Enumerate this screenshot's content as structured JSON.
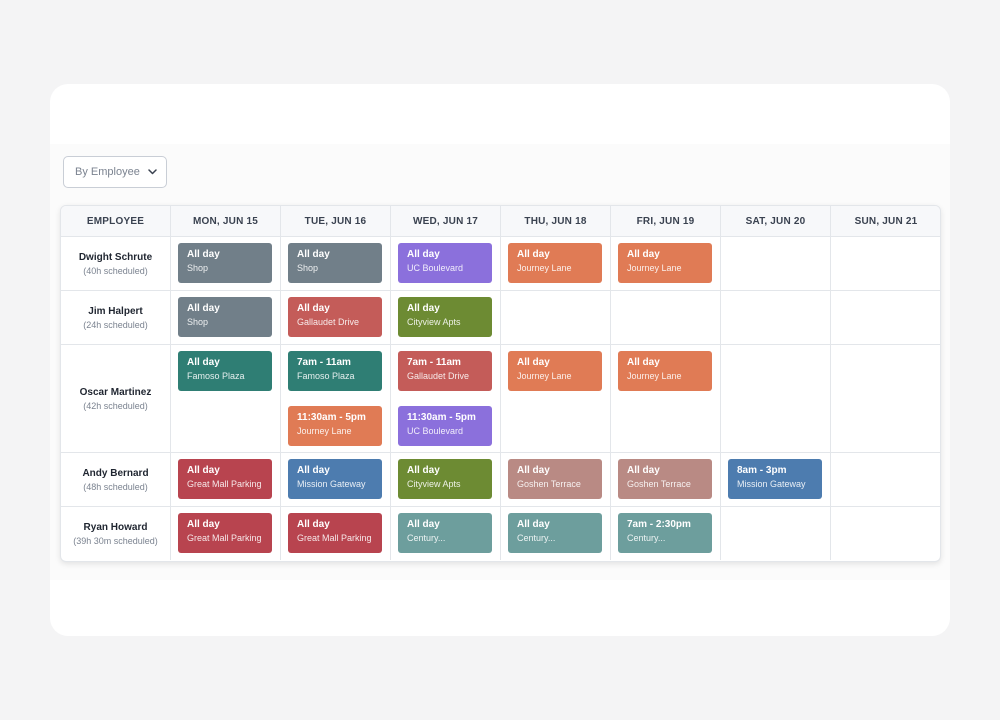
{
  "toolbar": {
    "view_select": "By Employee"
  },
  "table": {
    "headers": [
      "EMPLOYEE",
      "MON, JUN 15",
      "TUE, JUN 16",
      "WED, JUN 17",
      "THU, JUN 18",
      "FRI, JUN 19",
      "SAT, JUN 20",
      "SUN, JUN 21"
    ],
    "rows": [
      {
        "name": "Dwight Schrute",
        "hours": "(40h scheduled)",
        "days": [
          [
            {
              "time": "All day",
              "location": "Shop",
              "color": "#717f89"
            }
          ],
          [
            {
              "time": "All day",
              "location": "Shop",
              "color": "#717f89"
            }
          ],
          [
            {
              "time": "All day",
              "location": "UC Boulevard",
              "color": "#8b70dc"
            }
          ],
          [
            {
              "time": "All day",
              "location": "Journey Lane",
              "color": "#e07b55"
            }
          ],
          [
            {
              "time": "All day",
              "location": "Journey Lane",
              "color": "#e07b55"
            }
          ],
          [],
          []
        ]
      },
      {
        "name": "Jim Halpert",
        "hours": "(24h scheduled)",
        "days": [
          [
            {
              "time": "All day",
              "location": "Shop",
              "color": "#717f89"
            }
          ],
          [
            {
              "time": "All day",
              "location": "Gallaudet Drive",
              "color": "#c45c59"
            }
          ],
          [
            {
              "time": "All day",
              "location": "Cityview Apts",
              "color": "#6d8b33"
            }
          ],
          [],
          [],
          [],
          []
        ]
      },
      {
        "name": "Oscar Martinez",
        "hours": "(42h scheduled)",
        "days": [
          [
            {
              "time": "All day",
              "location": "Famoso Plaza",
              "color": "#2f7e74"
            }
          ],
          [
            {
              "time": "7am - 11am",
              "location": "Famoso Plaza",
              "color": "#2f7e74"
            },
            {
              "time": "11:30am - 5pm",
              "location": "Journey Lane",
              "color": "#e07b55"
            }
          ],
          [
            {
              "time": "7am - 11am",
              "location": "Gallaudet Drive",
              "color": "#c45c59"
            },
            {
              "time": "11:30am - 5pm",
              "location": "UC Boulevard",
              "color": "#8b70dc"
            }
          ],
          [
            {
              "time": "All day",
              "location": "Journey Lane",
              "color": "#e07b55"
            }
          ],
          [
            {
              "time": "All day",
              "location": "Journey Lane",
              "color": "#e07b55"
            }
          ],
          [],
          []
        ]
      },
      {
        "name": "Andy Bernard",
        "hours": "(48h scheduled)",
        "days": [
          [
            {
              "time": "All day",
              "location": "Great Mall Parking",
              "color": "#b8444f"
            }
          ],
          [
            {
              "time": "All day",
              "location": "Mission Gateway",
              "color": "#4d7caf"
            }
          ],
          [
            {
              "time": "All day",
              "location": "Cityview Apts",
              "color": "#6d8b33"
            }
          ],
          [
            {
              "time": "All day",
              "location": "Goshen Terrace",
              "color": "#b98a84"
            }
          ],
          [
            {
              "time": "All day",
              "location": "Goshen Terrace",
              "color": "#b98a84"
            }
          ],
          [
            {
              "time": "8am - 3pm",
              "location": "Mission Gateway",
              "color": "#4d7caf"
            }
          ],
          []
        ]
      },
      {
        "name": "Ryan Howard",
        "hours": "(39h 30m scheduled)",
        "days": [
          [
            {
              "time": "All day",
              "location": "Great Mall Parking",
              "color": "#b8444f"
            }
          ],
          [
            {
              "time": "All day",
              "location": "Great Mall Parking",
              "color": "#b8444f"
            }
          ],
          [
            {
              "time": "All day",
              "location": "Century...",
              "color": "#6d9e9d"
            }
          ],
          [
            {
              "time": "All day",
              "location": "Century...",
              "color": "#6d9e9d"
            }
          ],
          [
            {
              "time": "7am - 2:30pm",
              "location": "Century...",
              "color": "#6d9e9d"
            }
          ],
          [],
          []
        ]
      }
    ]
  }
}
